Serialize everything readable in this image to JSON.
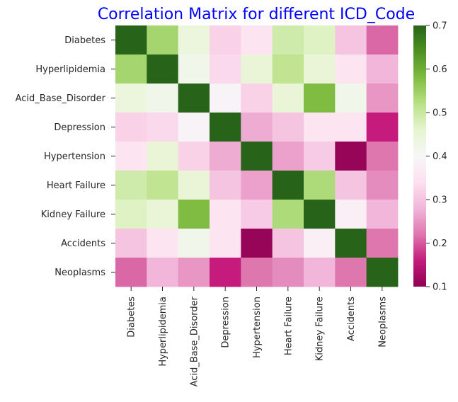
{
  "chart_data": {
    "type": "heatmap",
    "title": "Correlation Matrix for different ICD_Code",
    "rows": [
      "Diabetes",
      "Hyperlipidemia",
      "Acid_Base_Disorder",
      "Depression",
      "Hypertension",
      "Heart Failure",
      "Kidney Failure",
      "Accidents",
      "Neoplasms"
    ],
    "columns": [
      "Diabetes",
      "Hyperlipidemia",
      "Acid_Base_Disorder",
      "Depression",
      "Hypertension",
      "Heart Failure",
      "Kidney Failure",
      "Accidents",
      "Neoplasms"
    ],
    "values": [
      [
        0.7,
        0.54,
        0.44,
        0.32,
        0.35,
        0.49,
        0.47,
        0.3,
        0.21
      ],
      [
        0.54,
        0.7,
        0.42,
        0.33,
        0.45,
        0.51,
        0.45,
        0.35,
        0.28
      ],
      [
        0.44,
        0.42,
        0.7,
        0.39,
        0.32,
        0.45,
        0.58,
        0.42,
        0.25
      ],
      [
        0.32,
        0.33,
        0.39,
        0.7,
        0.27,
        0.3,
        0.35,
        0.35,
        0.16
      ],
      [
        0.35,
        0.45,
        0.32,
        0.27,
        0.7,
        0.26,
        0.31,
        0.11,
        0.22
      ],
      [
        0.49,
        0.51,
        0.45,
        0.3,
        0.26,
        0.7,
        0.53,
        0.3,
        0.24
      ],
      [
        0.47,
        0.45,
        0.58,
        0.35,
        0.31,
        0.53,
        0.7,
        0.38,
        0.28
      ],
      [
        0.3,
        0.35,
        0.42,
        0.35,
        0.11,
        0.3,
        0.38,
        0.7,
        0.22
      ],
      [
        0.21,
        0.28,
        0.25,
        0.16,
        0.22,
        0.24,
        0.28,
        0.22,
        0.7
      ]
    ],
    "vmin": 0.1,
    "vmax": 0.7,
    "colormap": "PiYG",
    "colorbar_ticks": [
      "0.7",
      "0.6",
      "0.5",
      "0.4",
      "0.3",
      "0.2",
      "0.1"
    ],
    "colorbar_tick_values": [
      0.7,
      0.6,
      0.5,
      0.4,
      0.3,
      0.2,
      0.1
    ],
    "colors": {
      "title": "#0000ff",
      "tick_text": "#262626",
      "cmap_stops": [
        "#8e0152",
        "#c51b7d",
        "#de77ae",
        "#f1b6da",
        "#fde0ef",
        "#f7f7f7",
        "#e6f5d0",
        "#b8e186",
        "#7fbc41",
        "#4d9221",
        "#276419"
      ]
    }
  }
}
